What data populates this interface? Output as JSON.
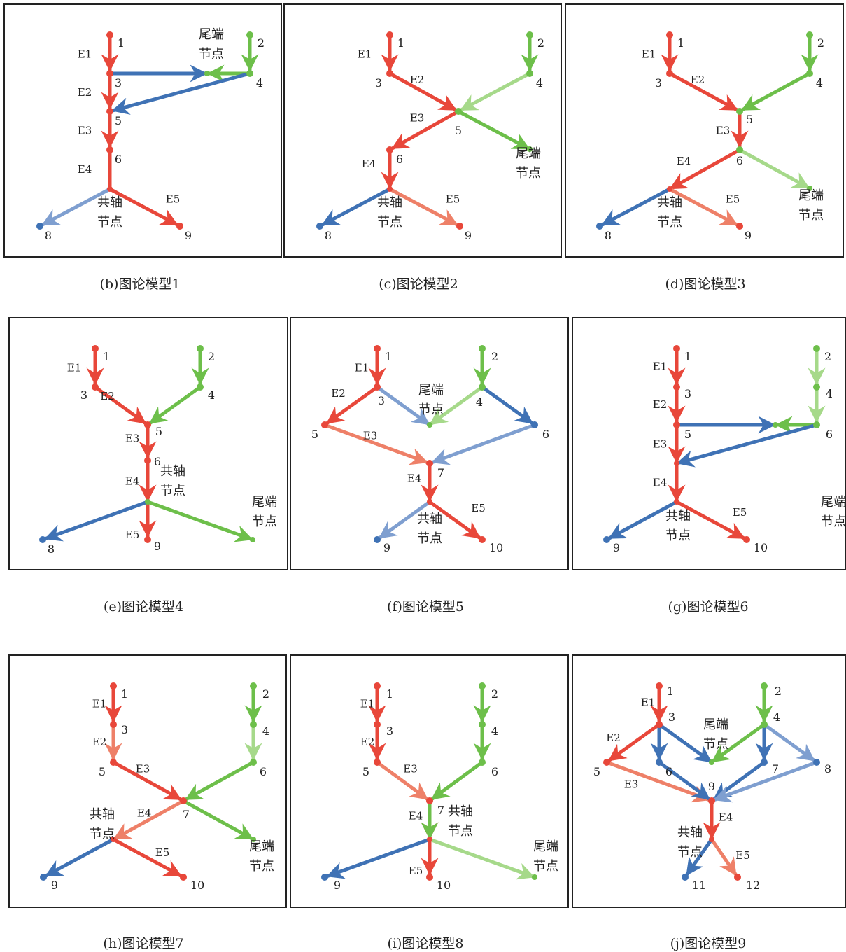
{
  "colors": {
    "red": "#e8473a",
    "red_light": "#ee8068",
    "green": "#6dbf4a",
    "green_light": "#a6d98a",
    "blue": "#3f72b5",
    "blue_light": "#7f9fd0",
    "text": "#222222"
  },
  "texts": {
    "tail_node": "尾端\n节点",
    "coaxial_node": "共轴\n节点"
  },
  "panels": [
    {
      "id": "b",
      "caption": "(b)图论模型1",
      "nodes": [
        {
          "id": "1",
          "color": "red"
        },
        {
          "id": "2",
          "color": "green"
        },
        {
          "id": "3",
          "color": "red"
        },
        {
          "id": "4",
          "color": "green"
        },
        {
          "id": "5",
          "color": "red"
        },
        {
          "id": "6",
          "color": "red"
        },
        {
          "id": "8",
          "color": "blue"
        },
        {
          "id": "9",
          "color": "red"
        },
        {
          "id": "",
          "color": "green"
        },
        {
          "id": "",
          "color": "red"
        }
      ],
      "edges": [
        {
          "label": "E1",
          "color": "red"
        },
        {
          "label": "E2",
          "color": "red"
        },
        {
          "label": "E3",
          "color": "red"
        },
        {
          "label": "E4",
          "color": "red"
        },
        {
          "label": "E5",
          "color": "red"
        },
        {
          "label": "",
          "color": "green"
        },
        {
          "label": "",
          "color": "green"
        },
        {
          "label": "",
          "color": "blue"
        },
        {
          "label": "",
          "color": "blue"
        },
        {
          "label": "",
          "color": "blue_light"
        }
      ],
      "texts": [
        "tail_node",
        "coaxial_node"
      ]
    },
    {
      "id": "c",
      "caption": "(c)图论模型2",
      "nodes": [
        {
          "id": "1",
          "color": "red"
        },
        {
          "id": "2",
          "color": "green"
        },
        {
          "id": "3",
          "color": "red"
        },
        {
          "id": "4",
          "color": "green"
        },
        {
          "id": "5",
          "color": "green"
        },
        {
          "id": "6",
          "color": "red"
        },
        {
          "id": "8",
          "color": "blue"
        },
        {
          "id": "9",
          "color": "red"
        },
        {
          "id": "",
          "color": "green"
        },
        {
          "id": "",
          "color": "red"
        }
      ],
      "edges": [
        {
          "label": "E1",
          "color": "red"
        },
        {
          "label": "E2",
          "color": "red"
        },
        {
          "label": "E3",
          "color": "red"
        },
        {
          "label": "E4",
          "color": "red"
        },
        {
          "label": "E5",
          "color": "red_light"
        },
        {
          "label": "",
          "color": "green"
        },
        {
          "label": "",
          "color": "green_light"
        },
        {
          "label": "",
          "color": "green"
        },
        {
          "label": "",
          "color": "blue"
        }
      ],
      "texts": [
        "tail_node",
        "coaxial_node"
      ]
    },
    {
      "id": "d",
      "caption": "(d)图论模型3",
      "nodes": [
        {
          "id": "1",
          "color": "red"
        },
        {
          "id": "2",
          "color": "green"
        },
        {
          "id": "3",
          "color": "red"
        },
        {
          "id": "4",
          "color": "green"
        },
        {
          "id": "5",
          "color": "green"
        },
        {
          "id": "6",
          "color": "green"
        },
        {
          "id": "8",
          "color": "blue"
        },
        {
          "id": "9",
          "color": "red"
        },
        {
          "id": "",
          "color": "green"
        },
        {
          "id": "",
          "color": "red"
        }
      ],
      "edges": [
        {
          "label": "E1",
          "color": "red"
        },
        {
          "label": "E2",
          "color": "red"
        },
        {
          "label": "E3",
          "color": "red"
        },
        {
          "label": "E4",
          "color": "red"
        },
        {
          "label": "E5",
          "color": "red_light"
        },
        {
          "label": "",
          "color": "green"
        },
        {
          "label": "",
          "color": "green"
        },
        {
          "label": "",
          "color": "green_light"
        },
        {
          "label": "",
          "color": "blue"
        }
      ],
      "texts": [
        "tail_node",
        "coaxial_node"
      ]
    },
    {
      "id": "e",
      "caption": "(e)图论模型4",
      "nodes": [
        {
          "id": "1",
          "color": "red"
        },
        {
          "id": "2",
          "color": "green"
        },
        {
          "id": "3",
          "color": "red"
        },
        {
          "id": "4",
          "color": "green"
        },
        {
          "id": "5",
          "color": "red"
        },
        {
          "id": "6",
          "color": "red"
        },
        {
          "id": "8",
          "color": "blue"
        },
        {
          "id": "9",
          "color": "red"
        },
        {
          "id": "",
          "color": "green"
        },
        {
          "id": "",
          "color": "green"
        }
      ],
      "edges": [
        {
          "label": "E1",
          "color": "red"
        },
        {
          "label": "E2",
          "color": "red"
        },
        {
          "label": "E3",
          "color": "red"
        },
        {
          "label": "E4",
          "color": "red"
        },
        {
          "label": "E5",
          "color": "red"
        },
        {
          "label": "",
          "color": "green"
        },
        {
          "label": "",
          "color": "green"
        },
        {
          "label": "",
          "color": "green"
        },
        {
          "label": "",
          "color": "blue"
        }
      ],
      "texts": [
        "tail_node",
        "coaxial_node"
      ]
    },
    {
      "id": "f",
      "caption": "(f)图论模型5",
      "nodes": [
        {
          "id": "1",
          "color": "red"
        },
        {
          "id": "2",
          "color": "green"
        },
        {
          "id": "3",
          "color": "red"
        },
        {
          "id": "4",
          "color": "green"
        },
        {
          "id": "5",
          "color": "red"
        },
        {
          "id": "6",
          "color": "blue"
        },
        {
          "id": "7",
          "color": "red"
        },
        {
          "id": "9",
          "color": "blue"
        },
        {
          "id": "10",
          "color": "red"
        },
        {
          "id": "",
          "color": "green"
        },
        {
          "id": "",
          "color": "red"
        }
      ],
      "edges": [
        {
          "label": "E1",
          "color": "red"
        },
        {
          "label": "E2",
          "color": "red"
        },
        {
          "label": "E3",
          "color": "red_light"
        },
        {
          "label": "E4",
          "color": "red"
        },
        {
          "label": "E5",
          "color": "red"
        },
        {
          "label": "",
          "color": "green"
        },
        {
          "label": "",
          "color": "blue_light"
        },
        {
          "label": "",
          "color": "green_light"
        },
        {
          "label": "",
          "color": "blue"
        },
        {
          "label": "",
          "color": "blue_light"
        },
        {
          "label": "",
          "color": "blue_light"
        }
      ],
      "texts": [
        "tail_node",
        "coaxial_node"
      ]
    },
    {
      "id": "g",
      "caption": "(g)图论模型6",
      "nodes": [
        {
          "id": "1",
          "color": "red"
        },
        {
          "id": "2",
          "color": "green"
        },
        {
          "id": "3",
          "color": "red"
        },
        {
          "id": "4",
          "color": "green"
        },
        {
          "id": "5",
          "color": "red"
        },
        {
          "id": "6",
          "color": "green"
        },
        {
          "id": "9",
          "color": "blue"
        },
        {
          "id": "10",
          "color": "red"
        },
        {
          "id": "",
          "color": "green"
        },
        {
          "id": "",
          "color": "red"
        },
        {
          "id": "",
          "color": "red"
        }
      ],
      "edges": [
        {
          "label": "E1",
          "color": "red"
        },
        {
          "label": "E2",
          "color": "red"
        },
        {
          "label": "E3",
          "color": "red"
        },
        {
          "label": "E4",
          "color": "red"
        },
        {
          "label": "E5",
          "color": "red"
        },
        {
          "label": "",
          "color": "green_light"
        },
        {
          "label": "",
          "color": "green_light"
        },
        {
          "label": "",
          "color": "green"
        },
        {
          "label": "",
          "color": "blue"
        },
        {
          "label": "",
          "color": "blue"
        },
        {
          "label": "",
          "color": "blue"
        }
      ],
      "texts": [
        "tail_node",
        "coaxial_node"
      ]
    },
    {
      "id": "h",
      "caption": "(h)图论模型7",
      "nodes": [
        {
          "id": "1",
          "color": "red"
        },
        {
          "id": "2",
          "color": "green"
        },
        {
          "id": "3",
          "color": "red"
        },
        {
          "id": "4",
          "color": "green"
        },
        {
          "id": "5",
          "color": "red"
        },
        {
          "id": "6",
          "color": "green"
        },
        {
          "id": "7",
          "color": "red"
        },
        {
          "id": "9",
          "color": "blue"
        },
        {
          "id": "10",
          "color": "red"
        },
        {
          "id": "",
          "color": "green"
        },
        {
          "id": "",
          "color": "red"
        }
      ],
      "edges": [
        {
          "label": "E1",
          "color": "red"
        },
        {
          "label": "E2",
          "color": "red_light"
        },
        {
          "label": "E3",
          "color": "red"
        },
        {
          "label": "E4",
          "color": "red_light"
        },
        {
          "label": "E5",
          "color": "red"
        },
        {
          "label": "",
          "color": "green"
        },
        {
          "label": "",
          "color": "green_light"
        },
        {
          "label": "",
          "color": "green"
        },
        {
          "label": "",
          "color": "green"
        },
        {
          "label": "",
          "color": "blue"
        }
      ],
      "texts": [
        "tail_node",
        "coaxial_node"
      ]
    },
    {
      "id": "i",
      "caption": "(i)图论模型8",
      "nodes": [
        {
          "id": "1",
          "color": "red"
        },
        {
          "id": "2",
          "color": "green"
        },
        {
          "id": "3",
          "color": "red"
        },
        {
          "id": "4",
          "color": "green"
        },
        {
          "id": "5",
          "color": "red"
        },
        {
          "id": "6",
          "color": "green"
        },
        {
          "id": "7",
          "color": "red"
        },
        {
          "id": "9",
          "color": "blue"
        },
        {
          "id": "10",
          "color": "red"
        },
        {
          "id": "",
          "color": "green"
        },
        {
          "id": "",
          "color": "red"
        }
      ],
      "edges": [
        {
          "label": "E1",
          "color": "red"
        },
        {
          "label": "E2",
          "color": "red"
        },
        {
          "label": "E3",
          "color": "red_light"
        },
        {
          "label": "E4",
          "color": "red"
        },
        {
          "label": "E5",
          "color": "red"
        },
        {
          "label": "",
          "color": "green"
        },
        {
          "label": "",
          "color": "green"
        },
        {
          "label": "",
          "color": "green"
        },
        {
          "label": "",
          "color": "green"
        },
        {
          "label": "",
          "color": "green_light"
        },
        {
          "label": "",
          "color": "blue"
        }
      ],
      "texts": [
        "tail_node",
        "coaxial_node"
      ]
    },
    {
      "id": "j",
      "caption": "(j)图论模型9",
      "nodes": [
        {
          "id": "1",
          "color": "red"
        },
        {
          "id": "2",
          "color": "green"
        },
        {
          "id": "3",
          "color": "red"
        },
        {
          "id": "4",
          "color": "green"
        },
        {
          "id": "5",
          "color": "red"
        },
        {
          "id": "6",
          "color": "blue"
        },
        {
          "id": "7",
          "color": "blue"
        },
        {
          "id": "8",
          "color": "blue"
        },
        {
          "id": "9",
          "color": "red"
        },
        {
          "id": "11",
          "color": "blue"
        },
        {
          "id": "12",
          "color": "red"
        },
        {
          "id": "",
          "color": "green"
        },
        {
          "id": "",
          "color": "red"
        }
      ],
      "edges": [
        {
          "label": "E1",
          "color": "red"
        },
        {
          "label": "E2",
          "color": "red"
        },
        {
          "label": "E3",
          "color": "red_light"
        },
        {
          "label": "E4",
          "color": "red"
        },
        {
          "label": "E5",
          "color": "red_light"
        },
        {
          "label": "",
          "color": "green"
        },
        {
          "label": "",
          "color": "blue"
        },
        {
          "label": "",
          "color": "blue"
        },
        {
          "label": "",
          "color": "green"
        },
        {
          "label": "",
          "color": "blue"
        },
        {
          "label": "",
          "color": "blue"
        },
        {
          "label": "",
          "color": "blue"
        },
        {
          "label": "",
          "color": "blue_light"
        },
        {
          "label": "",
          "color": "blue_light"
        },
        {
          "label": "",
          "color": "blue"
        }
      ],
      "texts": [
        "tail_node",
        "coaxial_node"
      ]
    }
  ]
}
